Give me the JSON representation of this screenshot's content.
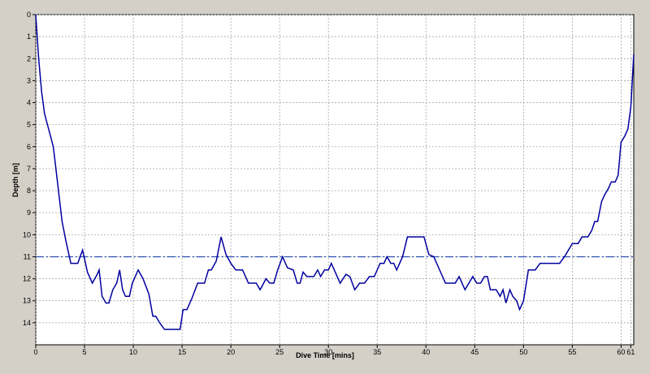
{
  "chart_data": {
    "type": "line",
    "xlabel": "Dive Time [mins]",
    "ylabel": "Depth [m]",
    "x": [
      0,
      0.3,
      0.6,
      0.9,
      1.5,
      1.8,
      2.2,
      2.7,
      3.1,
      3.6,
      4.3,
      4.8,
      5.3,
      5.8,
      6.3,
      6.5,
      6.8,
      7.2,
      7.5,
      7.9,
      8.3,
      8.6,
      8.9,
      9.2,
      9.6,
      9.9,
      10.5,
      11,
      11.6,
      12,
      12.3,
      12.7,
      13.2,
      14.8,
      15.1,
      15.5,
      16,
      16.6,
      17.3,
      17.7,
      18,
      18.5,
      19,
      19.5,
      20,
      20.5,
      21.2,
      21.8,
      22.6,
      23,
      23.6,
      24,
      24.4,
      24.8,
      25.3,
      25.8,
      26.4,
      26.8,
      27.1,
      27.4,
      27.8,
      28.5,
      28.9,
      29.2,
      29.6,
      30,
      30.3,
      30.8,
      31.2,
      31.8,
      32.2,
      32.7,
      33.2,
      33.7,
      34.2,
      34.7,
      35.3,
      35.7,
      36,
      36.4,
      36.7,
      37,
      37.6,
      38.1,
      39.8,
      40.3,
      40.8,
      41.4,
      42,
      43,
      43.4,
      44,
      44.8,
      45.2,
      45.6,
      46,
      46.3,
      46.6,
      47.2,
      47.6,
      47.9,
      48.2,
      48.6,
      48.9,
      49.3,
      49.6,
      50,
      50.5,
      51.2,
      51.7,
      53.7,
      54.2,
      54.6,
      55,
      55.6,
      56,
      56.6,
      57,
      57.3,
      57.6,
      58,
      58.3,
      58.7,
      59,
      59.4,
      59.7,
      60,
      60.4,
      60.7,
      61,
      61.3
    ],
    "series": [
      {
        "color": "#0000a0",
        "values": [
          0,
          2,
          3.5,
          4.5,
          5.5,
          6,
          7.5,
          9.4,
          10.3,
          11.3,
          11.3,
          10.7,
          11.7,
          12.2,
          11.8,
          11.6,
          12.8,
          13.1,
          13.1,
          12.5,
          12.2,
          11.6,
          12.5,
          12.8,
          12.8,
          12.2,
          11.6,
          12,
          12.7,
          13.7,
          13.7,
          14,
          14.3,
          14.3,
          13.4,
          13.4,
          12.9,
          12.2,
          12.2,
          11.6,
          11.6,
          11.2,
          10.1,
          10.9,
          11.3,
          11.6,
          11.6,
          12.2,
          12.2,
          12.5,
          12,
          12.2,
          12.2,
          11.6,
          11,
          11.5,
          11.6,
          12.2,
          12.2,
          11.7,
          11.9,
          11.9,
          11.6,
          11.9,
          11.6,
          11.6,
          11.3,
          11.8,
          12.2,
          11.8,
          11.9,
          12.5,
          12.2,
          12.2,
          11.9,
          11.9,
          11.3,
          11.3,
          11,
          11.3,
          11.3,
          11.6,
          11,
          10.1,
          10.1,
          10.9,
          11,
          11.6,
          12.2,
          12.2,
          11.9,
          12.5,
          11.9,
          12.2,
          12.2,
          11.9,
          11.9,
          12.5,
          12.5,
          12.8,
          12.5,
          13.1,
          12.5,
          12.8,
          13,
          13.4,
          13,
          11.6,
          11.6,
          11.3,
          11.3,
          11,
          10.7,
          10.4,
          10.4,
          10.1,
          10.1,
          9.8,
          9.4,
          9.4,
          8.5,
          8.2,
          7.9,
          7.6,
          7.6,
          7.3,
          5.8,
          5.5,
          5.2,
          4.2,
          1.8
        ]
      }
    ],
    "reference_line": {
      "value": 11,
      "color": "#2a4fb0"
    },
    "xlim": [
      0,
      61.3
    ],
    "xticks": [
      0,
      5,
      10,
      15,
      20,
      25,
      30,
      35,
      40,
      45,
      50,
      55,
      60,
      61
    ],
    "ylim": [
      15,
      0
    ],
    "yticks": [
      0,
      1,
      2,
      3,
      4,
      5,
      6,
      7,
      8,
      9,
      10,
      11,
      12,
      13,
      14
    ],
    "grid": true
  }
}
